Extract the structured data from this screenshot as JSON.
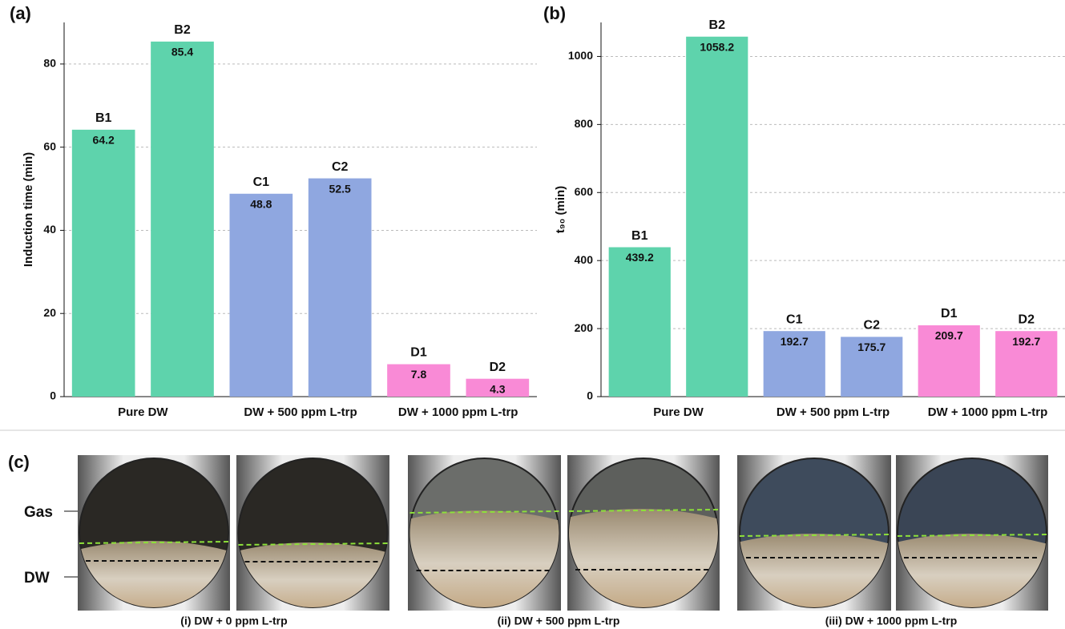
{
  "chart_data": [
    {
      "type": "bar",
      "panel_label": "(a)",
      "ylabel": "Induction time (min)",
      "categories": [
        "B1",
        "B2",
        "C1",
        "C2",
        "D1",
        "D2"
      ],
      "values": [
        64.2,
        85.4,
        48.8,
        52.5,
        7.8,
        4.3
      ],
      "colors": [
        "#5ed3ac",
        "#5ed3ac",
        "#8fa7e0",
        "#8fa7e0",
        "#f98ad6",
        "#f98ad6"
      ],
      "groups": [
        "Pure DW",
        "DW + 500 ppm L-trp",
        "DW + 1000 ppm L-trp"
      ],
      "ylim": [
        0,
        90
      ],
      "yticks": [
        0,
        20,
        40,
        60,
        80
      ],
      "grid": true
    },
    {
      "type": "bar",
      "panel_label": "(b)",
      "ylabel": "t₉₀ (min)",
      "categories": [
        "B1",
        "B2",
        "C1",
        "C2",
        "D1",
        "D2"
      ],
      "values": [
        439.2,
        1058.2,
        192.7,
        175.7,
        209.7,
        192.7
      ],
      "colors": [
        "#5ed3ac",
        "#5ed3ac",
        "#8fa7e0",
        "#8fa7e0",
        "#f98ad6",
        "#f98ad6"
      ],
      "groups": [
        "Pure DW",
        "DW + 500 ppm L-trp",
        "DW + 1000 ppm L-trp"
      ],
      "ylim": [
        0,
        1100
      ],
      "yticks": [
        0,
        200,
        400,
        600,
        800,
        1000
      ],
      "grid": true
    }
  ],
  "photos": {
    "panel_label": "(c)",
    "gas_label": "Gas",
    "dw_label": "DW",
    "captions": [
      "(i) DW + 0 ppm L-trp",
      "(ii) DW + 500 ppm L-trp",
      "(iii) DW + 1000 ppm L-trp"
    ]
  }
}
